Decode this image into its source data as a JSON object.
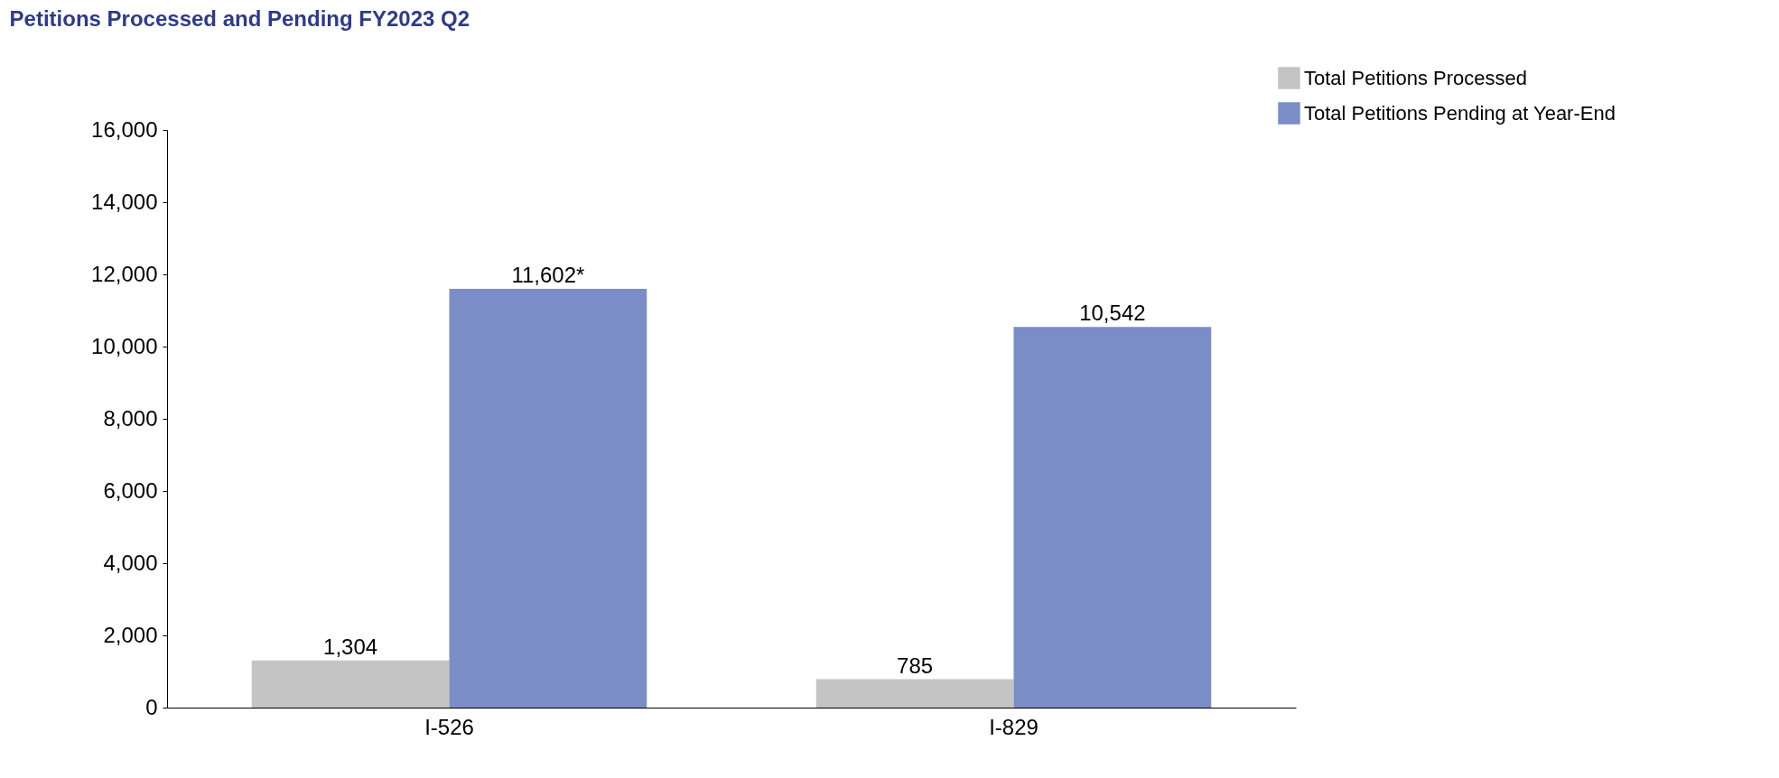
{
  "chart_data": {
    "type": "bar",
    "title": "Petitions Processed and Pending FY2023 Q2",
    "categories": [
      "I-526",
      "I-829"
    ],
    "series": [
      {
        "name": "Total Petitions Processed",
        "color": "#c4c4c4",
        "values": [
          1304,
          785
        ],
        "value_labels": [
          "1,304",
          "785"
        ]
      },
      {
        "name": "Total Petitions Pending at Year-End",
        "color": "#7a8dc7",
        "values": [
          11602,
          10542
        ],
        "value_labels": [
          "11,602*",
          "10,542"
        ]
      }
    ],
    "ylim": [
      0,
      16000
    ],
    "yticks": [
      0,
      {
        "value": 2000,
        "label": "2,000"
      },
      {
        "value": 4000,
        "label": "4,000"
      },
      {
        "value": 6000,
        "label": "6,000"
      },
      {
        "value": 8000,
        "label": "8,000"
      },
      {
        "value": 10000,
        "label": "10,000"
      },
      {
        "value": 12000,
        "label": "12,000"
      },
      {
        "value": 14000,
        "label": "14,000"
      },
      {
        "value": 16000,
        "label": "16,000"
      }
    ],
    "grid": false,
    "legend": "top right"
  }
}
